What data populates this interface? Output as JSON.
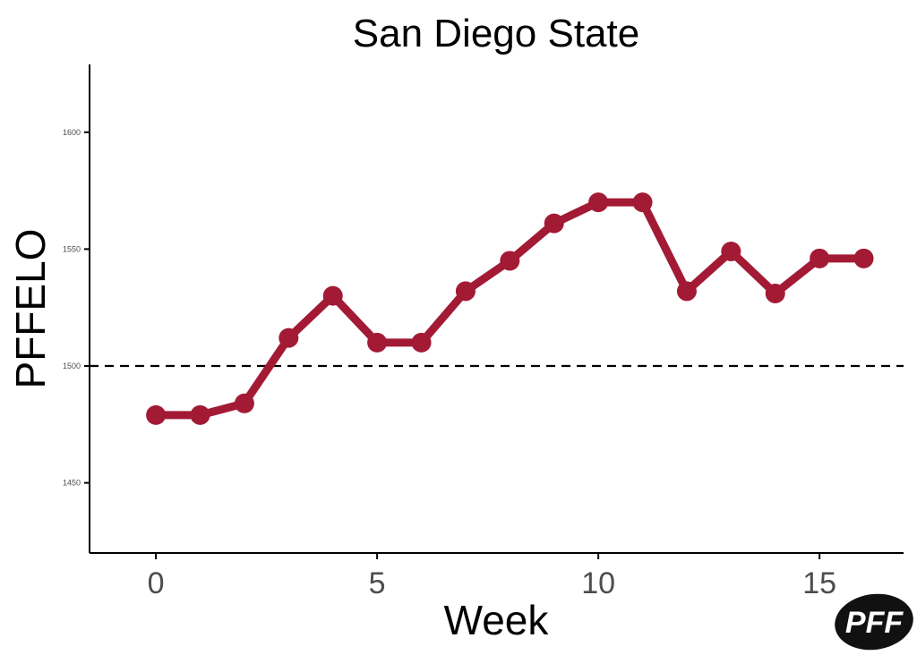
{
  "chart_data": {
    "type": "line",
    "title": "San Diego State",
    "xlabel": "Week",
    "ylabel": "PFFELO",
    "x": [
      0,
      1,
      2,
      3,
      4,
      5,
      6,
      7,
      8,
      9,
      10,
      11,
      12,
      13,
      14,
      15,
      16
    ],
    "series": [
      {
        "values": [
          1479,
          1479,
          1484,
          1512,
          1530,
          1510,
          1510,
          1532,
          1545,
          1561,
          1570,
          1570,
          1532,
          1549,
          1531,
          1546,
          1546
        ],
        "color": "#a31a35"
      }
    ],
    "xlim": [
      -1.5,
      16.9
    ],
    "ylim": [
      1420,
      1629
    ],
    "xticks": [
      0,
      5,
      10,
      15
    ],
    "xtick_labels": [
      "0",
      "5",
      "10",
      "15"
    ],
    "yticks": [
      1450,
      1500,
      1550,
      1600
    ],
    "ytick_labels": [
      "1450",
      "1500",
      "1550",
      "1600"
    ],
    "reference_line": {
      "value": 1500,
      "style": "dashed",
      "color": "#000000"
    },
    "grid": false,
    "legend": "none"
  },
  "logo": {
    "text": "PFF",
    "background": "#111111",
    "text_color": "#ffffff",
    "icon": "pff-logo-icon"
  }
}
